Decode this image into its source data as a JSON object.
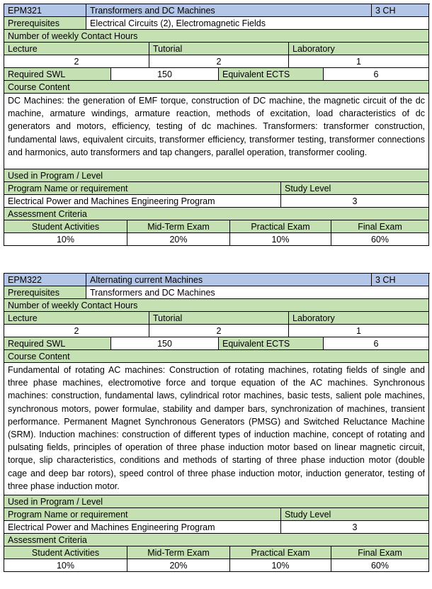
{
  "courses": [
    {
      "code": "EPM321",
      "title": "Transformers and DC Machines",
      "credits": "3 CH",
      "prereq_label": "Prerequisites",
      "prereq": "Electrical Circuits (2), Electromagnetic Fields",
      "contact_label": "Number of weekly Contact Hours",
      "lecture_label": "Lecture",
      "tutorial_label": "Tutorial",
      "lab_label": "Laboratory",
      "lecture": "2",
      "tutorial": "2",
      "lab": "1",
      "swl_label": "Required SWL",
      "swl": "150",
      "ects_label": "Equivalent ECTS",
      "ects": "6",
      "content_label": "Course Content",
      "content": "DC Machines: the generation of EMF torque, construction of DC machine, the magnetic circuit of the dc machine, armature windings, armature reaction, methods of excitation, load characteristics of dc generators and motors, efficiency, testing of dc machines. Transformers: transformer construction, fundamental laws, equivalent circuits, transformer efficiency, transformer testing, transformer connections and harmonics, auto transformers and tap changers, parallel operation, transformer cooling.",
      "used_label": "Used in Program / Level",
      "program_label": "Program Name or requirement",
      "level_label": "Study Level",
      "program": "Electrical Power and Machines Engineering Program",
      "level": "3",
      "assess_label": "Assessment Criteria",
      "assess_headers": [
        "Student Activities",
        "Mid-Term Exam",
        "Practical Exam",
        "Final Exam"
      ],
      "assess_values": [
        "10%",
        "20%",
        "10%",
        "60%"
      ]
    },
    {
      "code": "EPM322",
      "title": "Alternating current Machines",
      "credits": "3 CH",
      "prereq_label": "Prerequisites",
      "prereq": "Transformers and DC Machines",
      "contact_label": "Number of weekly Contact Hours",
      "lecture_label": "Lecture",
      "tutorial_label": "Tutorial",
      "lab_label": "Laboratory",
      "lecture": "2",
      "tutorial": "2",
      "lab": "1",
      "swl_label": "Required SWL",
      "swl": "150",
      "ects_label": "Equivalent ECTS",
      "ects": "6",
      "content_label": "Course Content",
      "content": "Fundamental of rotating AC machines: Construction of rotating machines, rotating fields of single and three phase machines, electromotive force and torque equation of the AC machines. Synchronous machines: construction, fundamental laws, cylindrical rotor machines, basic tests, salient pole machines, synchronous motors, power formulae, stability and damper bars, synchronization of machines, transient performance. Permanent Magnet Synchronous Generators (PMSG) and Switched Reluctance Machine (SRM). Induction machines: construction of different types of induction machine, concept of rotating and pulsating fields, principles of operation of three phase induction motor based on linear magnetic circuit, torque, slip characteristics, conditions and methods of starting of three phase induction motor (double cage and deep bar rotors), speed control of three phase induction motor, induction generator, testing of three phase induction motor.",
      "used_label": "Used in Program / Level",
      "program_label": "Program Name or requirement",
      "level_label": "Study Level",
      "program": "Electrical Power and Machines Engineering Program",
      "level": "3",
      "assess_label": "Assessment Criteria",
      "assess_headers": [
        "Student Activities",
        "Mid-Term Exam",
        "Practical Exam",
        "Final Exam"
      ],
      "assess_values": [
        "10%",
        "20%",
        "10%",
        "60%"
      ]
    }
  ]
}
